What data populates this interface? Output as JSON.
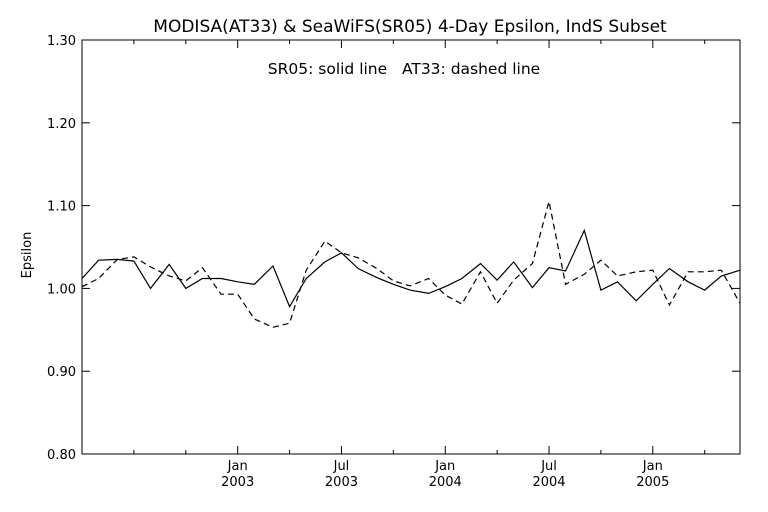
{
  "chart_data": {
    "type": "line",
    "title": "MODISA(AT33) & SeaWiFS(SR05) 4-Day Epsilon, IndS Subset",
    "annotation": "SR05: solid line   AT33: dashed line",
    "xlabel": "",
    "ylabel": "Epsilon",
    "xlim": [
      2002.25,
      2005.42
    ],
    "ylim": [
      0.8,
      1.3
    ],
    "grid": false,
    "x_ticks": [
      {
        "value": 2003.0,
        "line1": "Jan",
        "line2": "2003"
      },
      {
        "value": 2003.5,
        "line1": "Jul",
        "line2": "2003"
      },
      {
        "value": 2004.0,
        "line1": "Jan",
        "line2": "2004"
      },
      {
        "value": 2004.5,
        "line1": "Jul",
        "line2": "2004"
      },
      {
        "value": 2005.0,
        "line1": "Jan",
        "line2": "2005"
      }
    ],
    "y_ticks": [
      {
        "value": 0.8,
        "label": "0.80"
      },
      {
        "value": 0.9,
        "label": "0.90"
      },
      {
        "value": 1.0,
        "label": "1.00"
      },
      {
        "value": 1.1,
        "label": "1.10"
      },
      {
        "value": 1.2,
        "label": "1.20"
      },
      {
        "value": 1.3,
        "label": "1.30"
      }
    ],
    "series": [
      {
        "name": "SR05",
        "style": "solid",
        "color": "#000000",
        "x": [
          2002.25,
          2002.33,
          2002.42,
          2002.5,
          2002.58,
          2002.67,
          2002.75,
          2002.83,
          2002.92,
          2003.0,
          2003.08,
          2003.17,
          2003.25,
          2003.33,
          2003.42,
          2003.5,
          2003.58,
          2003.67,
          2003.75,
          2003.83,
          2003.92,
          2004.0,
          2004.08,
          2004.17,
          2004.25,
          2004.33,
          2004.42,
          2004.5,
          2004.58,
          2004.67,
          2004.75,
          2004.83,
          2004.92,
          2005.0,
          2005.08,
          2005.17,
          2005.25,
          2005.33,
          2005.42
        ],
        "y": [
          1.012,
          1.034,
          1.035,
          1.033,
          1.0,
          1.029,
          1.0,
          1.012,
          1.012,
          1.008,
          1.005,
          1.027,
          0.978,
          1.012,
          1.032,
          1.043,
          1.024,
          1.013,
          1.005,
          0.998,
          0.994,
          1.002,
          1.012,
          1.03,
          1.01,
          1.032,
          1.001,
          1.025,
          1.021,
          1.07,
          0.998,
          1.008,
          0.985,
          1.005,
          1.024,
          1.008,
          0.998,
          1.015,
          1.022
        ]
      },
      {
        "name": "AT33",
        "style": "dashed",
        "color": "#000000",
        "x": [
          2002.25,
          2002.33,
          2002.42,
          2002.5,
          2002.58,
          2002.67,
          2002.75,
          2002.83,
          2002.92,
          2003.0,
          2003.08,
          2003.17,
          2003.25,
          2003.33,
          2003.42,
          2003.5,
          2003.58,
          2003.67,
          2003.75,
          2003.83,
          2003.92,
          2004.0,
          2004.08,
          2004.17,
          2004.25,
          2004.33,
          2004.42,
          2004.5,
          2004.58,
          2004.67,
          2004.75,
          2004.83,
          2004.92,
          2005.0,
          2005.08,
          2005.17,
          2005.25,
          2005.33,
          2005.42
        ],
        "y": [
          1.002,
          1.012,
          1.035,
          1.038,
          1.026,
          1.015,
          1.009,
          1.025,
          0.993,
          0.993,
          0.963,
          0.953,
          0.958,
          1.022,
          1.057,
          1.043,
          1.037,
          1.024,
          1.009,
          1.003,
          1.012,
          0.992,
          0.981,
          1.02,
          0.982,
          1.01,
          1.03,
          1.105,
          1.005,
          1.017,
          1.034,
          1.015,
          1.02,
          1.022,
          0.98,
          1.02,
          1.02,
          1.022,
          0.982
        ]
      }
    ]
  }
}
